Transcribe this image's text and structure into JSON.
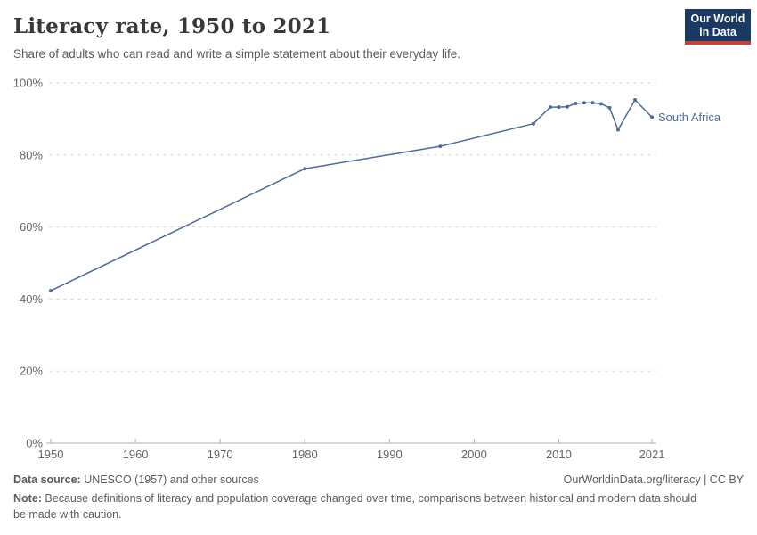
{
  "header": {
    "title": "Literacy rate, 1950 to 2021",
    "subtitle": "Share of adults who can read and write a simple statement about their everyday life.",
    "logo_line1": "Our World",
    "logo_line2": "in Data"
  },
  "chart_data": {
    "type": "line",
    "title": "Literacy rate, 1950 to 2021",
    "xlabel": "",
    "ylabel": "",
    "xlim": [
      1950,
      2021
    ],
    "ylim": [
      0,
      100
    ],
    "x_ticks": [
      1950,
      1960,
      1970,
      1980,
      1990,
      2000,
      2010,
      2021
    ],
    "y_ticks": [
      0,
      20,
      40,
      60,
      80,
      100
    ],
    "y_tick_suffix": "%",
    "grid": "horizontal-dashed",
    "legend_position": "end-of-line-label",
    "series": [
      {
        "name": "South Africa",
        "color": "#4C6A9C",
        "points": [
          [
            1950,
            42.3
          ],
          [
            1980,
            76.2
          ],
          [
            1996,
            82.4
          ],
          [
            2007,
            88.7
          ],
          [
            2009,
            93.3
          ],
          [
            2010,
            93.3
          ],
          [
            2011,
            93.4
          ],
          [
            2012,
            94.3
          ],
          [
            2013,
            94.5
          ],
          [
            2014,
            94.5
          ],
          [
            2015,
            94.2
          ],
          [
            2016,
            93.1
          ],
          [
            2017,
            87.0
          ],
          [
            2019,
            95.3
          ],
          [
            2021,
            90.5
          ]
        ]
      }
    ],
    "colors": {
      "grid": "#dcdcdc",
      "axis": "#b0b0b0",
      "tick_label": "#666666"
    }
  },
  "footer": {
    "datasource_label": "Data source:",
    "datasource_value": " UNESCO (1957) and other sources",
    "link": "OurWorldinData.org/literacy | CC BY",
    "note_label": "Note:",
    "note_value": " Because definitions of literacy and population coverage changed over time, comparisons between historical and modern data should be made with caution."
  }
}
